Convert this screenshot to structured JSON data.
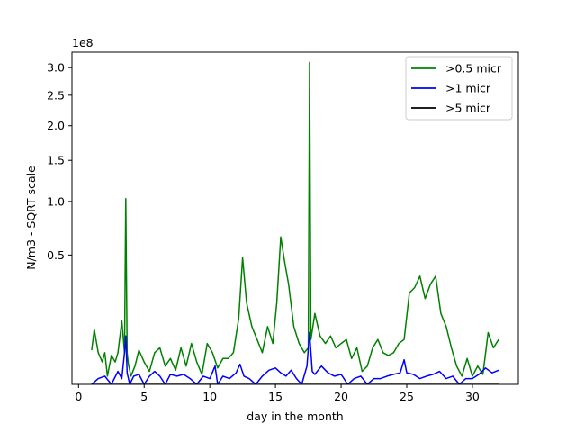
{
  "chart_data": {
    "type": "line",
    "xlabel": "day in the month",
    "ylabel": "N/m3 - SQRT scale",
    "y_offset_label": "1e8",
    "y_scale": "sqrt",
    "xlim": [
      -0.5,
      33.5
    ],
    "ylim": [
      0,
      3.3
    ],
    "x_ticks": [
      0,
      5,
      10,
      15,
      20,
      25,
      30
    ],
    "x_tick_labels": [
      "0",
      "5",
      "10",
      "15",
      "20",
      "25",
      "30"
    ],
    "y_ticks": [
      0.5,
      1.0,
      1.5,
      2.0,
      2.5,
      3.0
    ],
    "y_tick_labels": [
      "0.5",
      "1.0",
      "1.5",
      "2.0",
      "2.5",
      "3.0"
    ],
    "legend_position": "top-right",
    "grid": false,
    "series": [
      {
        "name": ">0.5 micr",
        "color": "#008000",
        "x": [
          1.0,
          1.2,
          1.5,
          1.8,
          2.0,
          2.2,
          2.5,
          2.8,
          3.0,
          3.3,
          3.5,
          3.6,
          3.7,
          3.8,
          4.0,
          4.3,
          4.6,
          5.0,
          5.4,
          5.8,
          6.2,
          6.6,
          7.0,
          7.4,
          7.8,
          8.2,
          8.6,
          9.0,
          9.4,
          9.8,
          10.2,
          10.6,
          11.0,
          11.4,
          11.8,
          12.2,
          12.5,
          12.8,
          13.2,
          13.6,
          14.0,
          14.4,
          14.8,
          15.1,
          15.4,
          15.7,
          16.0,
          16.4,
          16.8,
          17.2,
          17.5,
          17.6,
          17.7,
          18.0,
          18.4,
          18.8,
          19.2,
          19.6,
          20.0,
          20.4,
          20.8,
          21.2,
          21.6,
          22.0,
          22.4,
          22.8,
          23.2,
          23.6,
          24.0,
          24.4,
          24.8,
          25.2,
          25.6,
          26.0,
          26.4,
          26.8,
          27.2,
          27.6,
          28.0,
          28.4,
          28.8,
          29.2,
          29.6,
          30.0,
          30.4,
          30.8,
          31.2,
          31.6,
          32.0
        ],
        "values": [
          0.035,
          0.09,
          0.03,
          0.015,
          0.03,
          0.002,
          0.025,
          0.015,
          0.03,
          0.12,
          0.03,
          1.03,
          0.03,
          0.012,
          0.002,
          0.01,
          0.035,
          0.015,
          0.005,
          0.03,
          0.04,
          0.01,
          0.02,
          0.006,
          0.04,
          0.01,
          0.05,
          0.015,
          0.003,
          0.05,
          0.03,
          0.008,
          0.02,
          0.02,
          0.03,
          0.13,
          0.48,
          0.2,
          0.1,
          0.06,
          0.03,
          0.1,
          0.05,
          0.2,
          0.65,
          0.45,
          0.3,
          0.1,
          0.05,
          0.03,
          0.04,
          3.1,
          0.06,
          0.15,
          0.07,
          0.05,
          0.07,
          0.04,
          0.05,
          0.06,
          0.02,
          0.04,
          0.005,
          0.01,
          0.04,
          0.06,
          0.03,
          0.025,
          0.03,
          0.05,
          0.06,
          0.25,
          0.28,
          0.35,
          0.22,
          0.3,
          0.35,
          0.15,
          0.1,
          0.04,
          0.01,
          0.002,
          0.02,
          0.002,
          0.01,
          0.003,
          0.08,
          0.04,
          0.06
        ]
      },
      {
        "name": ">1 micr",
        "color": "#0000ff",
        "x": [
          1.0,
          1.5,
          2.0,
          2.5,
          3.0,
          3.3,
          3.5,
          3.6,
          3.7,
          3.9,
          4.2,
          4.6,
          5.0,
          5.4,
          5.8,
          6.2,
          6.6,
          7.0,
          7.5,
          8.0,
          8.5,
          9.0,
          9.5,
          10.0,
          10.4,
          10.6,
          11.0,
          11.5,
          12.0,
          12.3,
          12.6,
          13.0,
          13.5,
          14.0,
          14.5,
          15.0,
          15.4,
          15.8,
          16.2,
          16.6,
          17.0,
          17.4,
          17.6,
          17.8,
          18.0,
          18.5,
          19.0,
          19.5,
          20.0,
          20.5,
          21.0,
          21.5,
          22.0,
          22.5,
          23.0,
          23.5,
          24.0,
          24.5,
          24.8,
          25.0,
          25.5,
          26.0,
          26.5,
          27.0,
          27.5,
          28.0,
          28.5,
          29.0,
          29.5,
          30.0,
          30.5,
          31.0,
          31.5,
          32.0
        ],
        "values": [
          0.0,
          0.001,
          0.002,
          0.0,
          0.005,
          0.001,
          0.03,
          0.07,
          0.004,
          0.0,
          0.002,
          0.003,
          0.0,
          0.002,
          0.005,
          0.002,
          0.0,
          0.003,
          0.002,
          0.003,
          0.001,
          0.0,
          0.002,
          0.001,
          0.01,
          0.0,
          0.002,
          0.001,
          0.004,
          0.012,
          0.002,
          0.001,
          0.0,
          0.002,
          0.006,
          0.008,
          0.004,
          0.002,
          0.006,
          0.001,
          0.0,
          0.01,
          0.08,
          0.005,
          0.003,
          0.01,
          0.004,
          0.002,
          0.003,
          0.0,
          0.001,
          0.002,
          0.0,
          0.001,
          0.001,
          0.002,
          0.003,
          0.004,
          0.018,
          0.004,
          0.003,
          0.001,
          0.002,
          0.003,
          0.005,
          0.001,
          0.002,
          0.0,
          0.001,
          0.001,
          0.003,
          0.008,
          0.004,
          0.006
        ]
      },
      {
        "name": ">5 micr",
        "color": "#000000",
        "x": [
          1.0,
          32.0
        ],
        "values": [
          0.0,
          0.0
        ]
      }
    ]
  }
}
